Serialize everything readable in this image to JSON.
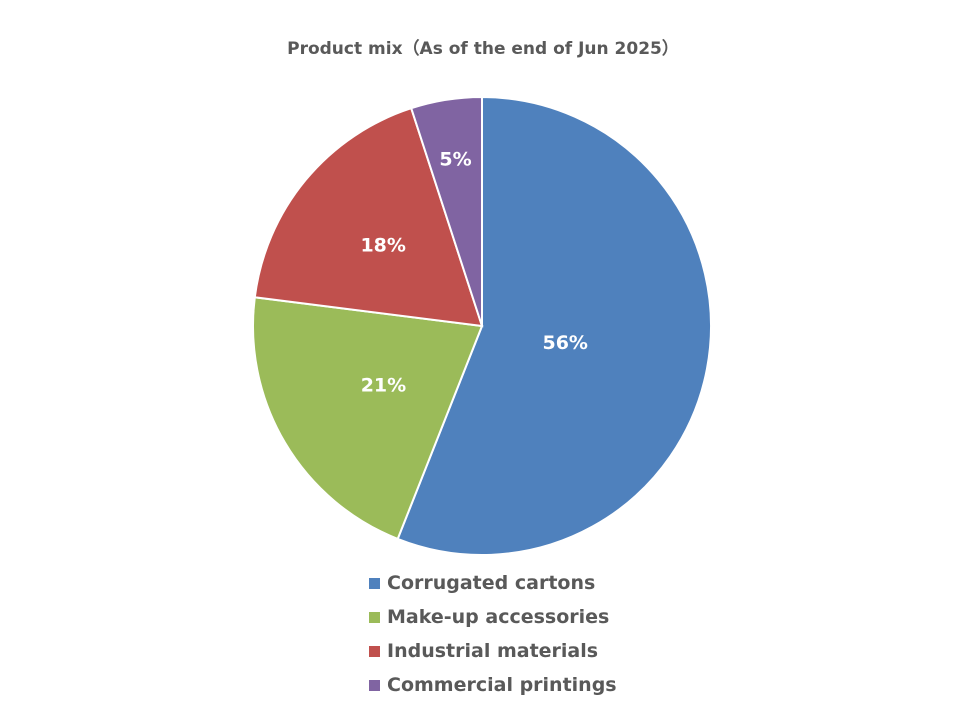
{
  "chart_data": {
    "type": "pie",
    "title": "Product mix（As of the end of Jun 2025）",
    "categories": [
      "Corrugated cartons",
      "Make-up accessories",
      "Industrial materials",
      "Commercial printings"
    ],
    "values": [
      56,
      21,
      18,
      5
    ],
    "labels": [
      "56%",
      "21%",
      "18%",
      "5%"
    ],
    "colors": [
      "#4F81BD",
      "#9BBB59",
      "#C0504D",
      "#8064A2"
    ],
    "start": "top, clockwise",
    "legend_position": "bottom"
  }
}
